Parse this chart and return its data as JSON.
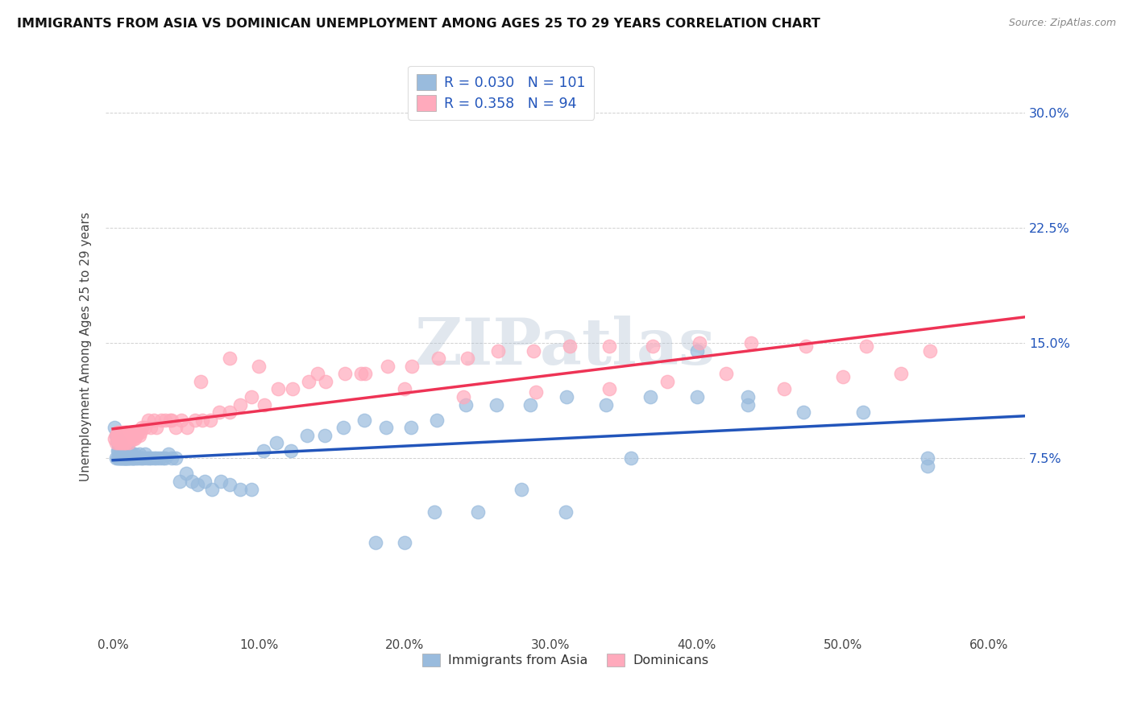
{
  "title": "IMMIGRANTS FROM ASIA VS DOMINICAN UNEMPLOYMENT AMONG AGES 25 TO 29 YEARS CORRELATION CHART",
  "source": "Source: ZipAtlas.com",
  "xlabel_ticks": [
    "0.0%",
    "10.0%",
    "20.0%",
    "30.0%",
    "40.0%",
    "50.0%",
    "60.0%"
  ],
  "xlabel_values": [
    0.0,
    0.1,
    0.2,
    0.3,
    0.4,
    0.5,
    0.6
  ],
  "ylabel": "Unemployment Among Ages 25 to 29 years",
  "ylabel_ticks": [
    "7.5%",
    "15.0%",
    "22.5%",
    "30.0%"
  ],
  "ylabel_values": [
    0.075,
    0.15,
    0.225,
    0.3
  ],
  "xlim": [
    -0.005,
    0.625
  ],
  "ylim": [
    -0.04,
    0.335
  ],
  "blue_color": "#99BBDD",
  "pink_color": "#FFAABC",
  "blue_line_color": "#2255BB",
  "pink_line_color": "#EE3355",
  "blue_R": 0.03,
  "blue_N": 101,
  "pink_R": 0.358,
  "pink_N": 94,
  "watermark": "ZIPatlas",
  "legend_label_blue": "Immigrants from Asia",
  "legend_label_pink": "Dominicans",
  "blue_scatter_x": [
    0.001,
    0.002,
    0.002,
    0.003,
    0.003,
    0.003,
    0.004,
    0.004,
    0.004,
    0.005,
    0.005,
    0.005,
    0.005,
    0.006,
    0.006,
    0.006,
    0.006,
    0.007,
    0.007,
    0.007,
    0.007,
    0.008,
    0.008,
    0.008,
    0.008,
    0.009,
    0.009,
    0.009,
    0.01,
    0.01,
    0.01,
    0.011,
    0.011,
    0.011,
    0.012,
    0.012,
    0.013,
    0.013,
    0.014,
    0.014,
    0.015,
    0.015,
    0.016,
    0.017,
    0.018,
    0.019,
    0.02,
    0.021,
    0.022,
    0.023,
    0.025,
    0.026,
    0.028,
    0.03,
    0.032,
    0.034,
    0.036,
    0.038,
    0.04,
    0.043,
    0.046,
    0.05,
    0.054,
    0.058,
    0.063,
    0.068,
    0.074,
    0.08,
    0.087,
    0.095,
    0.103,
    0.112,
    0.122,
    0.133,
    0.145,
    0.158,
    0.172,
    0.187,
    0.204,
    0.222,
    0.242,
    0.263,
    0.286,
    0.311,
    0.338,
    0.368,
    0.4,
    0.435,
    0.473,
    0.514,
    0.558,
    0.558,
    0.4,
    0.435,
    0.355,
    0.31,
    0.28,
    0.25,
    0.22,
    0.2,
    0.18
  ],
  "blue_scatter_y": [
    0.095,
    0.075,
    0.09,
    0.075,
    0.08,
    0.085,
    0.075,
    0.08,
    0.085,
    0.075,
    0.08,
    0.075,
    0.085,
    0.075,
    0.078,
    0.075,
    0.08,
    0.075,
    0.078,
    0.075,
    0.08,
    0.075,
    0.075,
    0.078,
    0.08,
    0.075,
    0.075,
    0.078,
    0.075,
    0.075,
    0.078,
    0.075,
    0.075,
    0.08,
    0.075,
    0.078,
    0.075,
    0.078,
    0.075,
    0.075,
    0.075,
    0.078,
    0.075,
    0.075,
    0.078,
    0.075,
    0.075,
    0.075,
    0.078,
    0.075,
    0.075,
    0.075,
    0.075,
    0.075,
    0.075,
    0.075,
    0.075,
    0.078,
    0.075,
    0.075,
    0.06,
    0.065,
    0.06,
    0.058,
    0.06,
    0.055,
    0.06,
    0.058,
    0.055,
    0.055,
    0.08,
    0.085,
    0.08,
    0.09,
    0.09,
    0.095,
    0.1,
    0.095,
    0.095,
    0.1,
    0.11,
    0.11,
    0.11,
    0.115,
    0.11,
    0.115,
    0.145,
    0.11,
    0.105,
    0.105,
    0.075,
    0.07,
    0.115,
    0.115,
    0.075,
    0.04,
    0.055,
    0.04,
    0.04,
    0.02,
    0.02
  ],
  "pink_scatter_x": [
    0.001,
    0.002,
    0.002,
    0.003,
    0.003,
    0.004,
    0.004,
    0.004,
    0.005,
    0.005,
    0.005,
    0.006,
    0.006,
    0.006,
    0.007,
    0.007,
    0.007,
    0.008,
    0.008,
    0.008,
    0.009,
    0.009,
    0.009,
    0.01,
    0.01,
    0.01,
    0.011,
    0.011,
    0.012,
    0.012,
    0.013,
    0.013,
    0.014,
    0.015,
    0.015,
    0.016,
    0.017,
    0.018,
    0.019,
    0.02,
    0.022,
    0.024,
    0.026,
    0.028,
    0.03,
    0.033,
    0.036,
    0.039,
    0.043,
    0.047,
    0.051,
    0.056,
    0.061,
    0.067,
    0.073,
    0.08,
    0.087,
    0.095,
    0.104,
    0.113,
    0.123,
    0.134,
    0.146,
    0.159,
    0.173,
    0.188,
    0.205,
    0.223,
    0.243,
    0.264,
    0.288,
    0.313,
    0.34,
    0.37,
    0.402,
    0.437,
    0.475,
    0.516,
    0.56,
    0.04,
    0.06,
    0.08,
    0.1,
    0.14,
    0.17,
    0.2,
    0.24,
    0.29,
    0.34,
    0.38,
    0.42,
    0.46,
    0.5,
    0.54
  ],
  "pink_scatter_y": [
    0.088,
    0.09,
    0.085,
    0.09,
    0.092,
    0.088,
    0.092,
    0.085,
    0.088,
    0.09,
    0.085,
    0.09,
    0.092,
    0.085,
    0.09,
    0.088,
    0.085,
    0.088,
    0.092,
    0.085,
    0.09,
    0.092,
    0.085,
    0.088,
    0.09,
    0.092,
    0.085,
    0.09,
    0.092,
    0.088,
    0.09,
    0.092,
    0.088,
    0.092,
    0.088,
    0.09,
    0.092,
    0.09,
    0.092,
    0.095,
    0.095,
    0.1,
    0.095,
    0.1,
    0.095,
    0.1,
    0.1,
    0.1,
    0.095,
    0.1,
    0.095,
    0.1,
    0.1,
    0.1,
    0.105,
    0.105,
    0.11,
    0.115,
    0.11,
    0.12,
    0.12,
    0.125,
    0.125,
    0.13,
    0.13,
    0.135,
    0.135,
    0.14,
    0.14,
    0.145,
    0.145,
    0.148,
    0.148,
    0.148,
    0.15,
    0.15,
    0.148,
    0.148,
    0.145,
    0.1,
    0.125,
    0.14,
    0.135,
    0.13,
    0.13,
    0.12,
    0.115,
    0.118,
    0.12,
    0.125,
    0.13,
    0.12,
    0.128,
    0.13
  ]
}
